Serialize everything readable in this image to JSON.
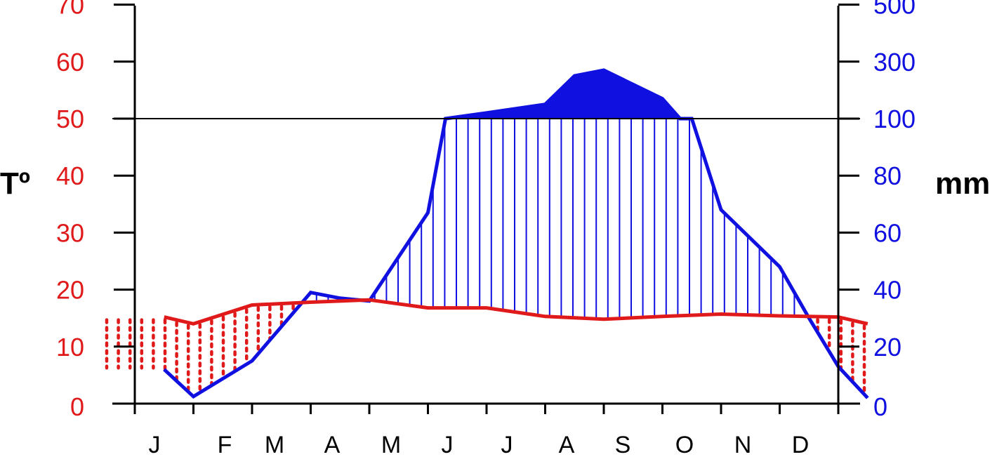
{
  "chart_data": {
    "type": "line",
    "subtype": "climate diagram (Walter-Lieth)",
    "left_axis": {
      "title": "Tº",
      "ticks": [
        "0",
        "10",
        "20",
        "30",
        "40",
        "50",
        "60",
        "70"
      ],
      "ylim": [
        0,
        70
      ],
      "color": "#e01a1a"
    },
    "right_axis": {
      "title": "mm",
      "ticks": [
        "0",
        "20",
        "40",
        "60",
        "80",
        "100",
        "300",
        "500"
      ],
      "scale": "linear 0-100 (2 mm per °C), compressed above 100 mm",
      "color": "#1010e0"
    },
    "months": [
      "J",
      "F",
      "M",
      "A",
      "M",
      "J",
      "J",
      "A",
      "S",
      "O",
      "N",
      "D"
    ],
    "series": [
      {
        "color": "#e01a1a",
        "x": [
          0.5,
          1,
          2,
          3,
          4,
          5,
          6,
          7,
          8,
          9,
          10,
          11,
          12,
          12.5
        ],
        "values": [
          15.2,
          14,
          17.3,
          17.8,
          18.2,
          16.8,
          16.8,
          15.3,
          14.8,
          15.3,
          15.7,
          15.4,
          15.2,
          14
        ]
      },
      {
        "color": "#1010e0",
        "x": [
          0.5,
          1,
          2,
          3,
          3.5,
          4,
          5,
          5.3,
          6,
          7,
          7.5,
          8,
          9,
          9.3,
          9.5,
          10,
          11,
          11.5,
          12,
          12.5
        ],
        "values": [
          12,
          2.5,
          15,
          39,
          37,
          36,
          67,
          100,
          120,
          150,
          250,
          270,
          170,
          100,
          100,
          68,
          48,
          30,
          13,
          2
        ]
      }
    ],
    "reference_line": 100,
    "fill_humid_color": "#1010e0",
    "fill_dry_color": "#e01a1a"
  }
}
